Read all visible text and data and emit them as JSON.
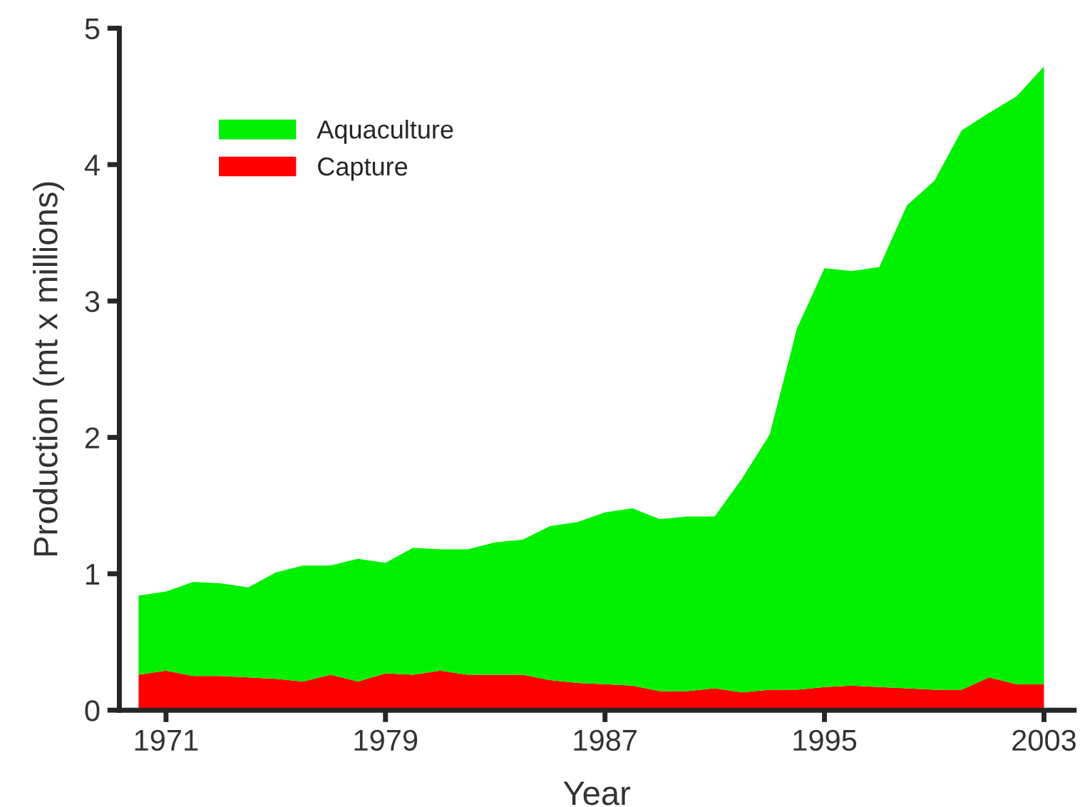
{
  "chart_data": {
    "type": "area",
    "stacked": true,
    "xlabel": "Year",
    "ylabel": "Production (mt x millions)",
    "x": [
      1970,
      1971,
      1972,
      1973,
      1974,
      1975,
      1976,
      1977,
      1978,
      1979,
      1980,
      1981,
      1982,
      1983,
      1984,
      1985,
      1986,
      1987,
      1988,
      1989,
      1990,
      1991,
      1992,
      1993,
      1994,
      1995,
      1996,
      1997,
      1998,
      1999,
      2000,
      2001,
      2002,
      2003
    ],
    "series": [
      {
        "name": "Capture",
        "color": "#ff0000",
        "values": [
          0.26,
          0.29,
          0.25,
          0.25,
          0.24,
          0.23,
          0.21,
          0.26,
          0.21,
          0.27,
          0.26,
          0.29,
          0.26,
          0.26,
          0.26,
          0.22,
          0.2,
          0.19,
          0.18,
          0.14,
          0.14,
          0.16,
          0.13,
          0.15,
          0.15,
          0.17,
          0.18,
          0.17,
          0.16,
          0.15,
          0.15,
          0.24,
          0.19,
          0.19
        ]
      },
      {
        "name": "Aquaculture",
        "color": "#00f000",
        "values": [
          0.58,
          0.58,
          0.69,
          0.68,
          0.66,
          0.78,
          0.85,
          0.8,
          0.9,
          0.81,
          0.93,
          0.89,
          0.92,
          0.97,
          0.99,
          1.13,
          1.18,
          1.26,
          1.3,
          1.26,
          1.28,
          1.26,
          1.57,
          1.87,
          2.65,
          3.07,
          3.04,
          3.08,
          3.54,
          3.73,
          4.1,
          4.14,
          4.31,
          4.53
        ]
      }
    ],
    "xlim": [
      1969.3,
      2004.1
    ],
    "xticks": [
      1971,
      1979,
      1987,
      1995,
      2003
    ],
    "ylim": [
      0,
      5
    ],
    "yticks": [
      0,
      1,
      2,
      3,
      4,
      5
    ],
    "grid": false,
    "legend": "top left"
  }
}
